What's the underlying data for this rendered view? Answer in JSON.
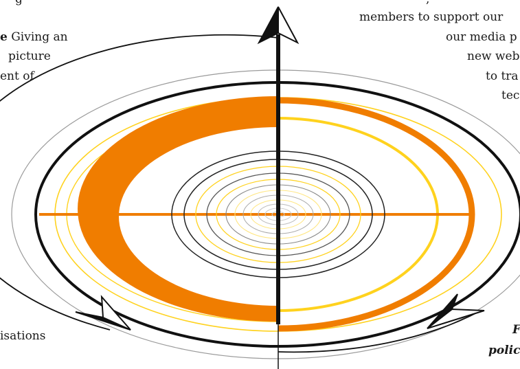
{
  "text_fragments": {
    "top_left_0": "g",
    "top_left_1_bold": "e",
    "top_left_1_rest": " Giving an",
    "top_left_2": "picture",
    "top_left_3": "ent of",
    "top_right_0": ",",
    "top_right_1": "members to support our",
    "top_right_2": "our media p",
    "top_right_3": "new web",
    "top_right_4": "to tra",
    "top_right_5": "tec",
    "bottom_left": "isations",
    "bottom_right_1": "F",
    "bottom_right_2": "polic"
  },
  "colors": {
    "orange": "#f07d00",
    "yellow": "#ffd21e",
    "light_yellow": "#ffe680",
    "black": "#111111",
    "grey": "#9a9a9a"
  }
}
